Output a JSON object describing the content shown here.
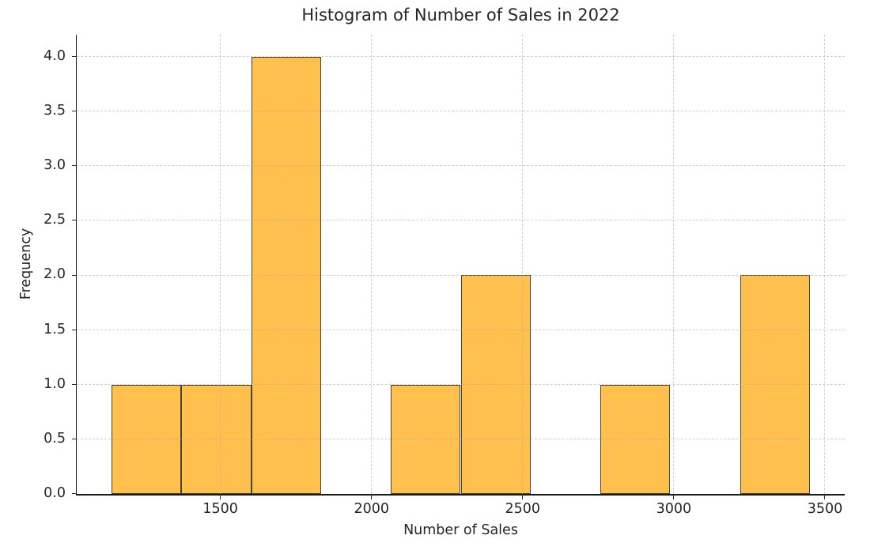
{
  "chart_data": {
    "type": "bar",
    "subtype": "histogram",
    "title": "Histogram of Number of Sales in 2022",
    "xlabel": "Number of Sales",
    "ylabel": "Frequency",
    "bin_edges": [
      1140,
      1371,
      1602,
      1833,
      2064,
      2295,
      2526,
      2757,
      2988,
      3219,
      3450
    ],
    "counts": [
      1,
      1,
      4,
      0,
      1,
      2,
      0,
      1,
      0,
      2
    ],
    "total_observations": 12,
    "x_ticks": [
      1500,
      2000,
      2500,
      3000,
      3500
    ],
    "x_tick_labels": [
      "1500",
      "2000",
      "2500",
      "3000",
      "3500"
    ],
    "y_ticks": [
      0.0,
      0.5,
      1.0,
      1.5,
      2.0,
      2.5,
      3.0,
      3.5,
      4.0
    ],
    "y_tick_labels": [
      "0.0",
      "0.5",
      "1.0",
      "1.5",
      "2.0",
      "2.5",
      "3.0",
      "3.5",
      "4.0"
    ],
    "xlim": [
      1024.5,
      3565.5
    ],
    "ylim": [
      0,
      4.2
    ],
    "grid": true,
    "grid_line_style": "dashed",
    "grid_drawn_above_bars": true,
    "legend_position": "none",
    "colors": {
      "bar_fill": "#FFC04D",
      "bar_edge": "#46422F",
      "grid": "#AAAAAA",
      "spine": "#1A1A1A",
      "text": "#262626",
      "background": "#FFFFFF"
    }
  }
}
